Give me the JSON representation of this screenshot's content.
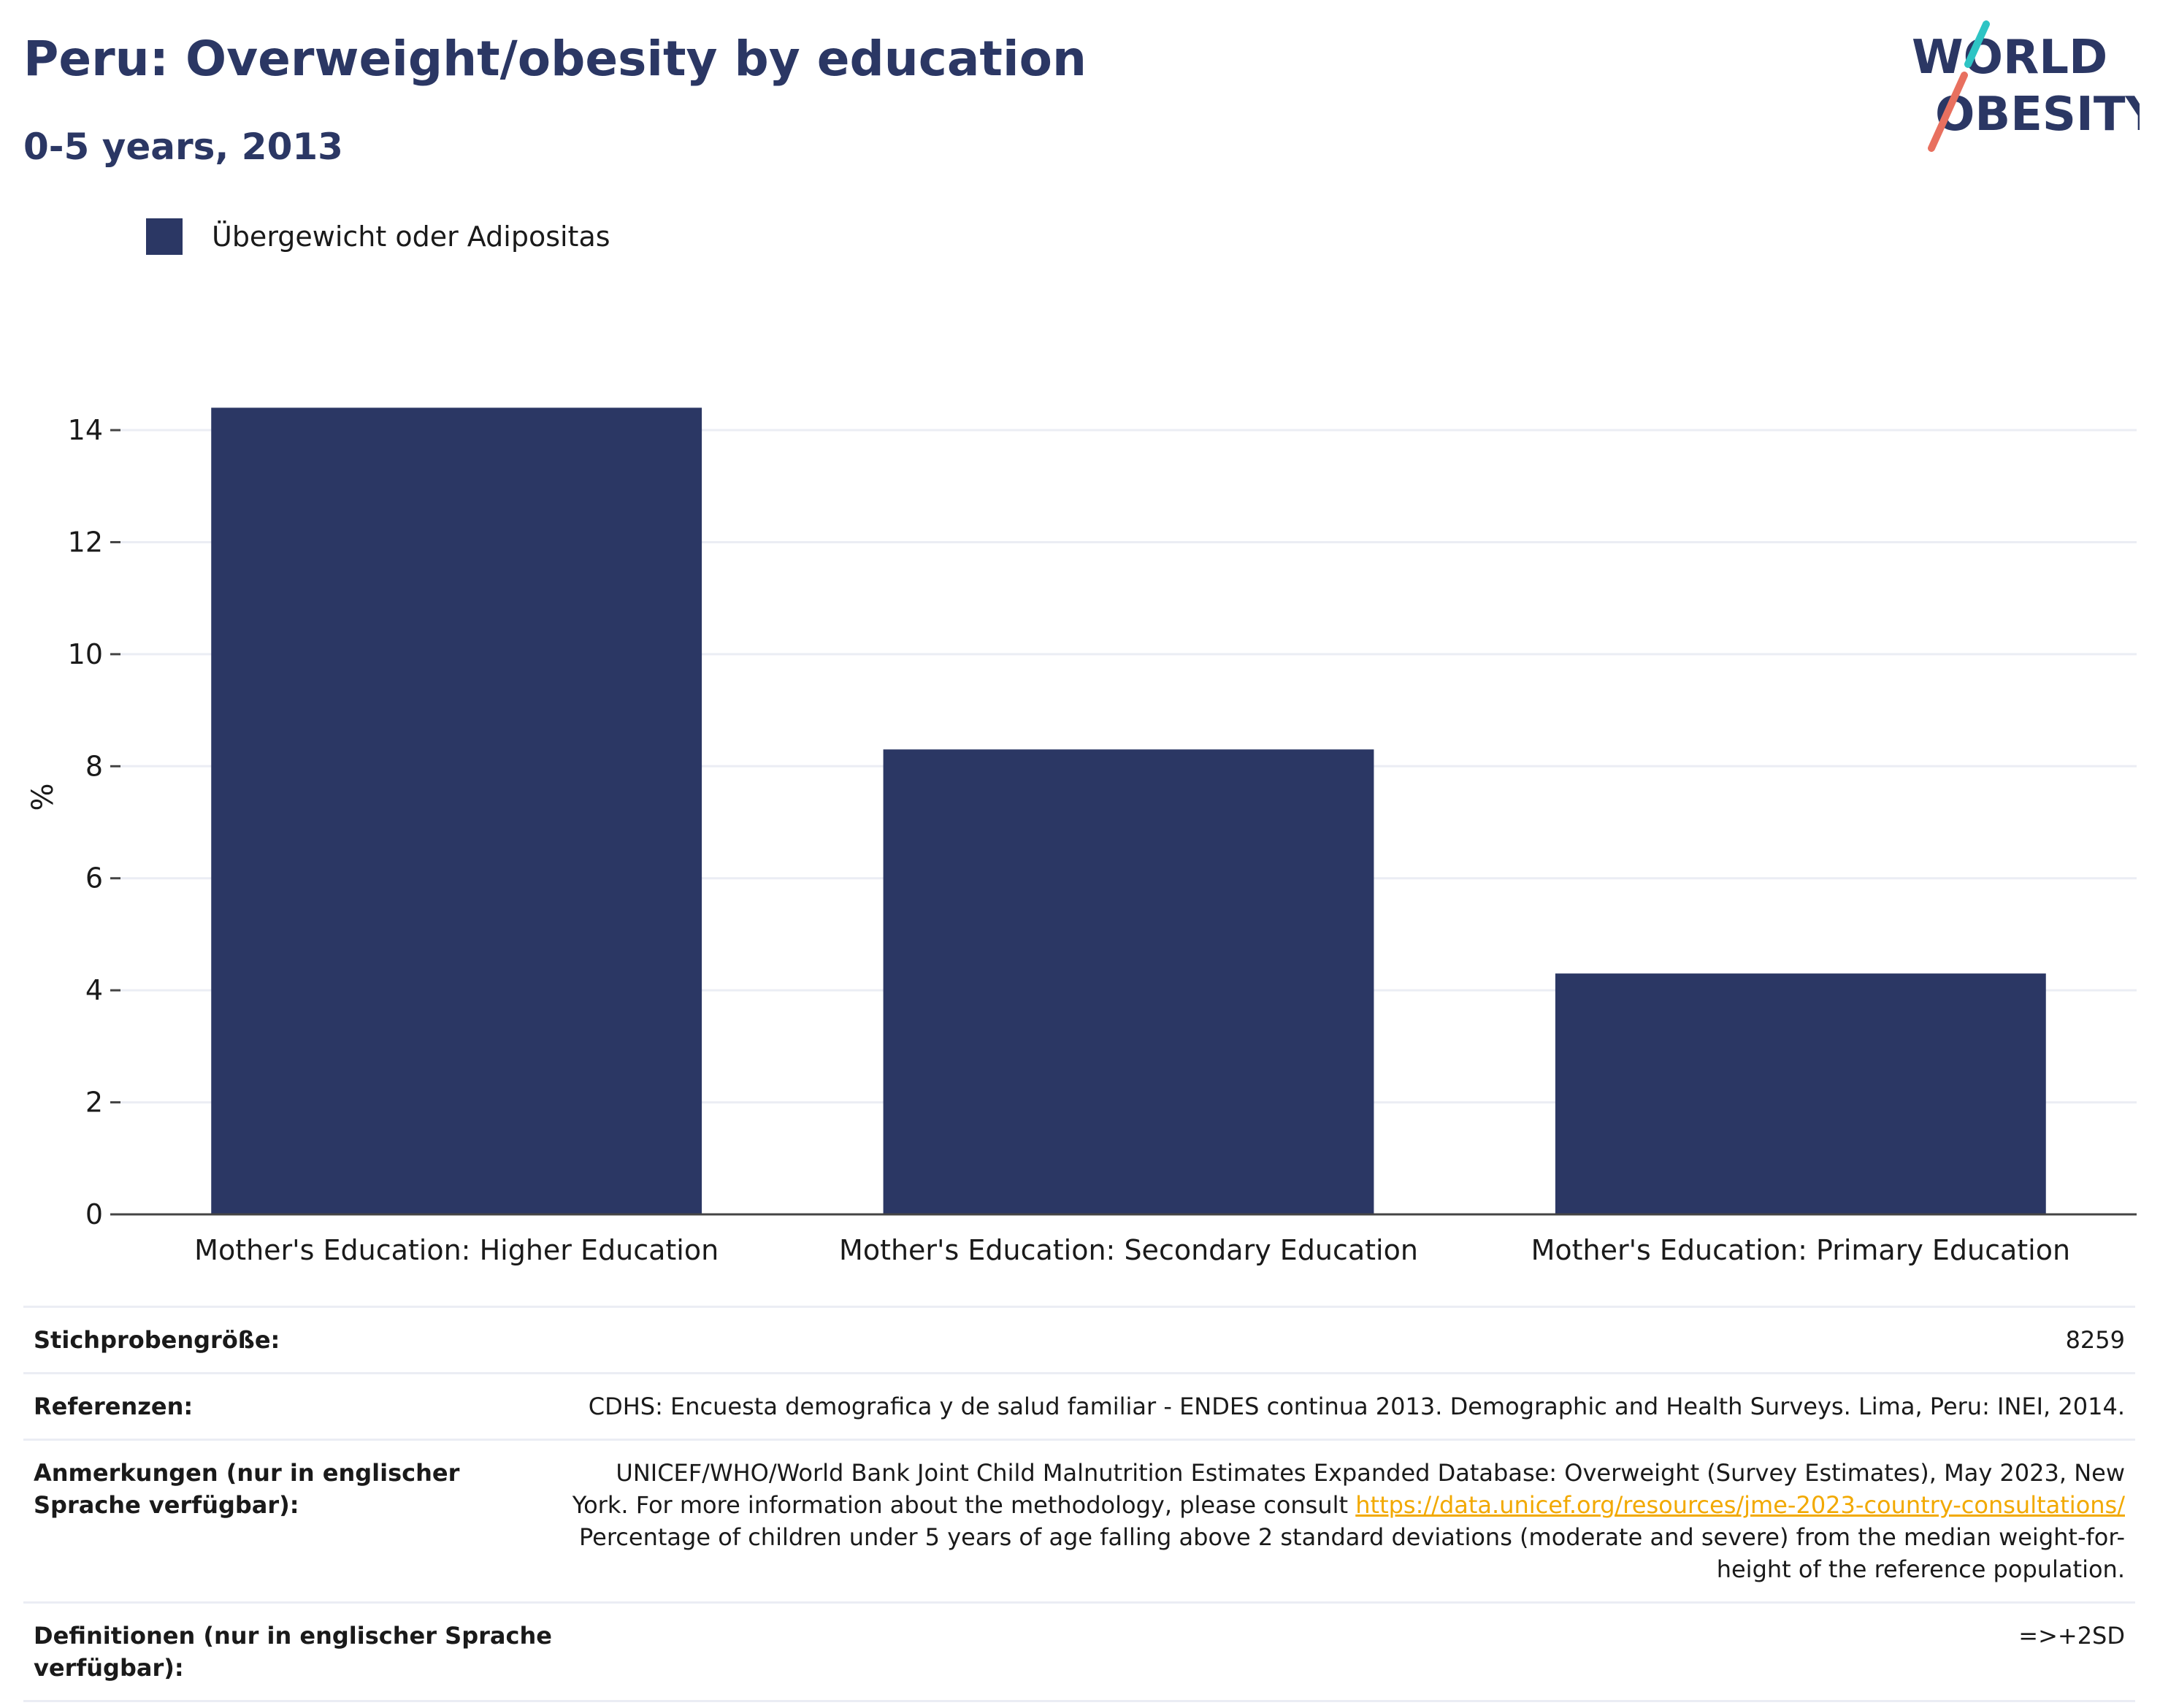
{
  "header": {
    "title": "Peru: Overweight/obesity by education",
    "subtitle": "0-5 years, 2013"
  },
  "logo": {
    "line1": "WORLD",
    "line2": "OBESITY",
    "colors": {
      "text": "#2b3764",
      "slash_teal": "#2ec4c4",
      "slash_coral": "#e8705f"
    }
  },
  "legend": {
    "items": [
      {
        "label": "Übergewicht oder Adipositas",
        "color": "#2b3764"
      }
    ]
  },
  "chart_data": {
    "type": "bar",
    "categories": [
      "Mother's Education: Higher Education",
      "Mother's Education: Secondary Education",
      "Mother's Education: Primary Education"
    ],
    "series": [
      {
        "name": "Übergewicht oder Adipositas",
        "values": [
          14.4,
          8.3,
          4.3
        ],
        "color": "#2b3764"
      }
    ],
    "ylabel": "%",
    "xlabel": "",
    "ylim": [
      0,
      14.9
    ],
    "yticks": [
      0,
      2,
      4,
      6,
      8,
      10,
      12,
      14
    ],
    "grid": true,
    "legend_position": "top-left"
  },
  "info": {
    "sample_size": {
      "label": "Stichprobengröße:",
      "value": "8259"
    },
    "references": {
      "label": "Referenzen:",
      "value": "CDHS: Encuesta demografica y de salud familiar - ENDES continua 2013. Demographic and Health Surveys. Lima, Peru: INEI, 2014."
    },
    "notes": {
      "label": "Anmerkungen (nur in englischer Sprache verfügbar):",
      "text_before_link": "UNICEF/WHO/World Bank Joint Child Malnutrition Estimates Expanded Database: Overweight (Survey Estimates), May 2023, New York. For more information about the methodology, please consult ",
      "link": "https://data.unicef.org/resources/jme-2023-country-consultations/",
      "text_after_link": " Percentage of children under 5 years of age falling above 2 standard deviations (moderate and severe) from the median weight-for-height of the reference population."
    },
    "definitions": {
      "label": "Definitionen (nur in englischer Sprache verfügbar):",
      "value": "=>+2SD"
    }
  }
}
